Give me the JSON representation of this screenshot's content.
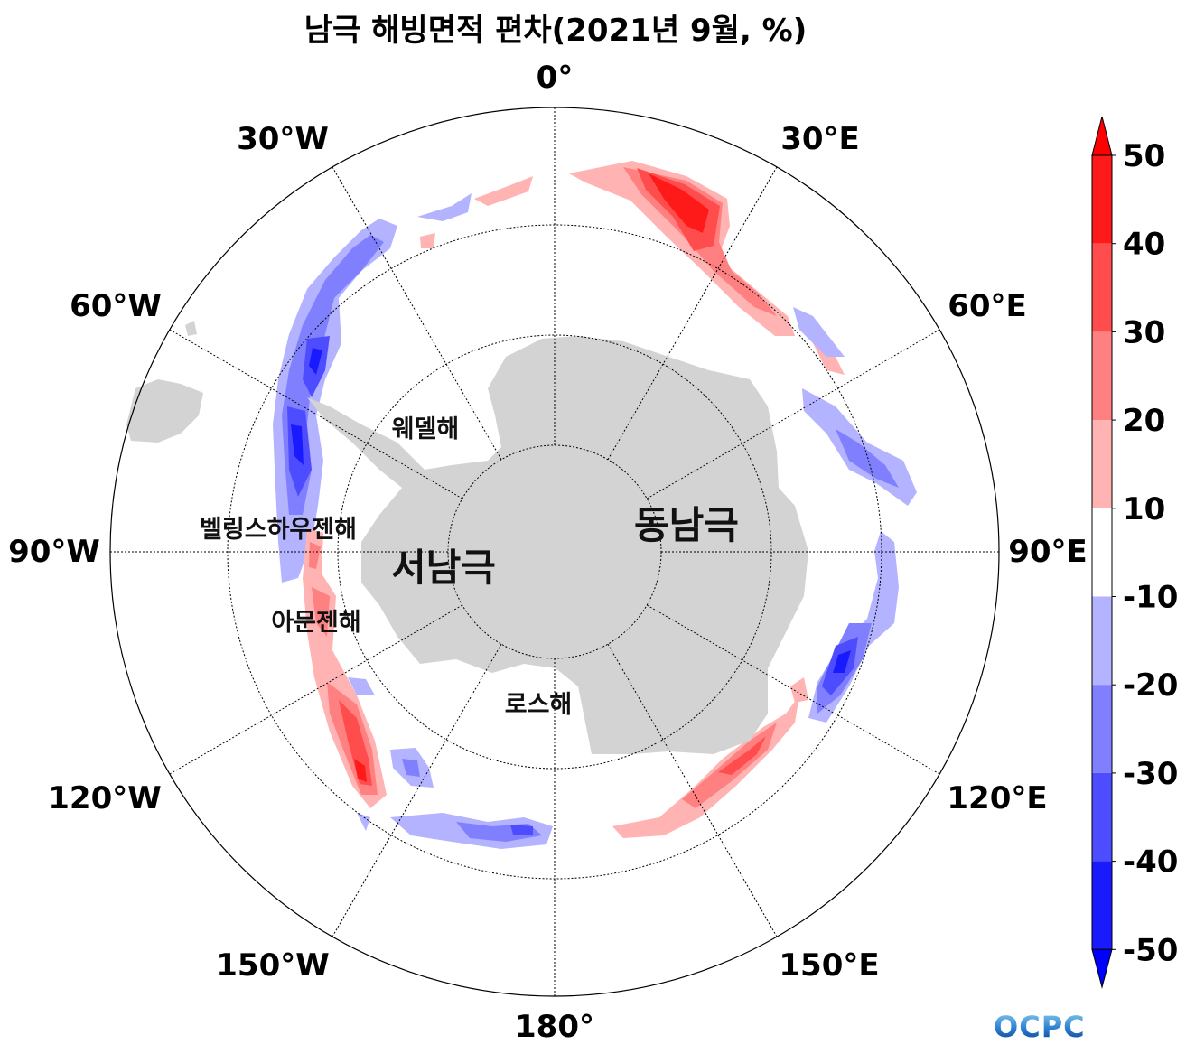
{
  "title": "남극 해빙면적 편차(2021년 9월, %)",
  "meridian_labels": {
    "m0": "0°",
    "m30e": "30°E",
    "m60e": "60°E",
    "m90e": "90°E",
    "m120e": "120°E",
    "m150e": "150°E",
    "m180": "180°",
    "m150w": "150°W",
    "m120w": "120°W",
    "m90w": "90°W",
    "m60w": "60°W",
    "m30w": "30°W"
  },
  "region_labels": {
    "weddell": "웨델해",
    "bellingshausen": "벨링스하우젠해",
    "amundsen": "아문젠해",
    "ross": "로스해",
    "west_antarctica": "서남극",
    "east_antarctica": "동남극"
  },
  "colorbar": {
    "ticks": [
      "50",
      "40",
      "30",
      "20",
      "10",
      "-10",
      "-20",
      "-30",
      "-40",
      "-50"
    ],
    "bins": [
      {
        "range": ">50",
        "color": "#ff0000"
      },
      {
        "range": "40~50",
        "color": "#ff1a1a"
      },
      {
        "range": "30~40",
        "color": "#ff4d4d"
      },
      {
        "range": "20~30",
        "color": "#ff8080"
      },
      {
        "range": "10~20",
        "color": "#ffb3b3"
      },
      {
        "range": "-10~10",
        "color": "#ffffff"
      },
      {
        "range": "-20~-10",
        "color": "#b3b3ff"
      },
      {
        "range": "-30~-20",
        "color": "#8080ff"
      },
      {
        "range": "-40~-30",
        "color": "#4d4dff"
      },
      {
        "range": "-50~-40",
        "color": "#1a1aff"
      },
      {
        "range": "<-50",
        "color": "#0000ff"
      }
    ]
  },
  "land_color": "#d3d3d3",
  "logo": "OCPC"
}
